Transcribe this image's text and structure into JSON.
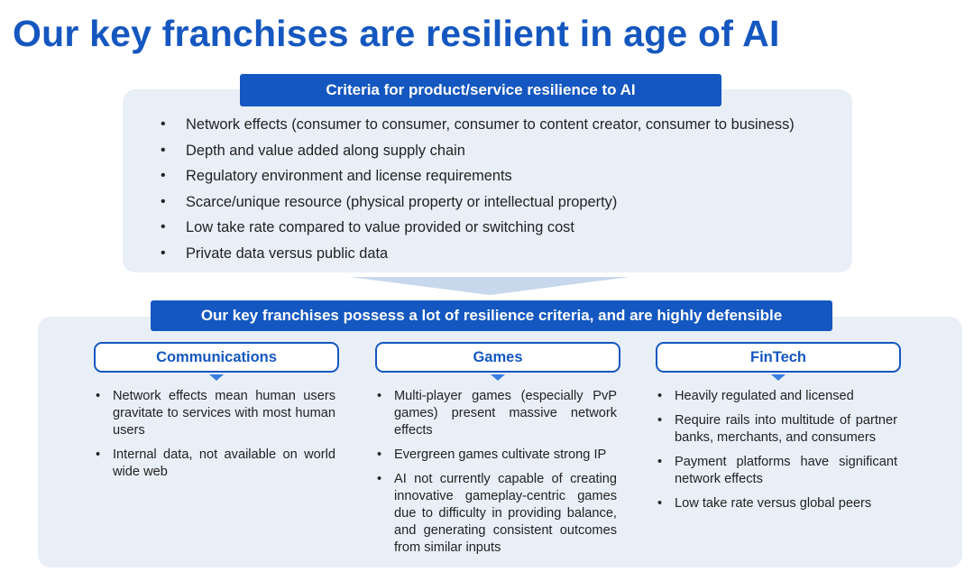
{
  "title": "Our key franchises are resilient in age of AI",
  "criteria": {
    "header": "Criteria for product/service resilience to AI",
    "items": [
      "Network effects (consumer to consumer, consumer to content creator, consumer to business)",
      "Depth and value added along supply chain",
      "Regulatory environment and license requirements",
      "Scarce/unique resource (physical property or intellectual property)",
      "Low take rate compared to value provided or switching cost",
      "Private data versus public data"
    ]
  },
  "summary": {
    "header": "Our key franchises possess a lot of resilience criteria, and are highly defensible"
  },
  "columns": [
    {
      "title": "Communications",
      "items": [
        "Network effects mean human users gravitate to services with most human users",
        "Internal data, not available on world wide web"
      ]
    },
    {
      "title": "Games",
      "items": [
        "Multi-player games (especially PvP games) present massive network effects",
        "Evergreen games cultivate strong IP",
        "AI not currently capable of creating innovative gameplay-centric games due to difficulty in providing balance, and generating consistent outcomes from similar inputs"
      ]
    },
    {
      "title": "FinTech",
      "items": [
        "Heavily regulated and licensed",
        "Require rails into multitude of partner banks, merchants, and consumers",
        "Payment platforms have significant network effects",
        "Low take rate versus global peers"
      ]
    }
  ],
  "colors": {
    "accent": "#1557c0",
    "panel": "#e9eff7",
    "funnel": "#c7d7ec"
  }
}
